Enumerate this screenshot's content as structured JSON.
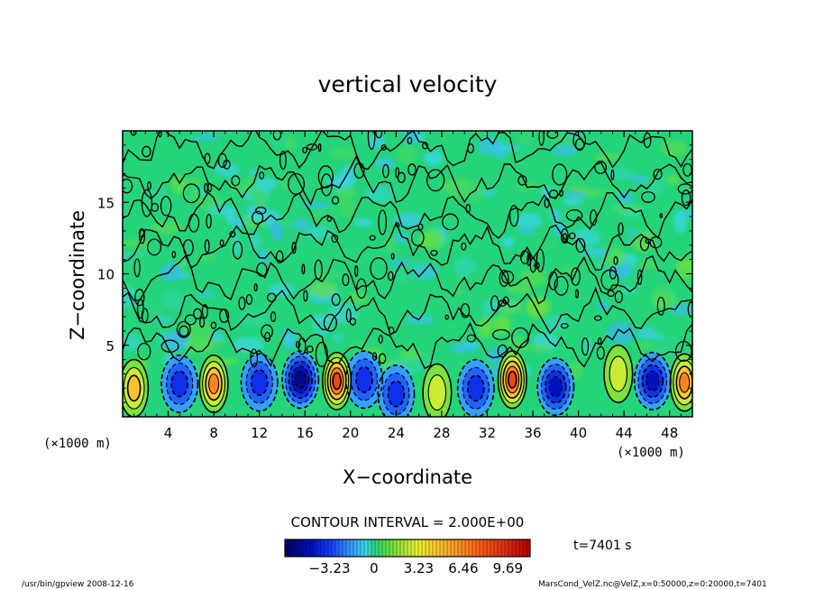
{
  "chart_data": {
    "type": "heatmap",
    "title": "vertical velocity",
    "xlabel": "X−coordinate",
    "ylabel": "Z−coordinate",
    "x_unit_left": "(×1000 m)",
    "x_unit_right": "(×1000 m)",
    "xlim": [
      0,
      50
    ],
    "ylim": [
      0,
      20
    ],
    "x_ticks": [
      "4",
      "8",
      "12",
      "16",
      "20",
      "24",
      "28",
      "32",
      "36",
      "40",
      "44",
      "48"
    ],
    "x_tick_values": [
      4,
      8,
      12,
      16,
      20,
      24,
      28,
      32,
      36,
      40,
      44,
      48
    ],
    "y_ticks": [
      "5",
      "10",
      "15"
    ],
    "y_tick_values": [
      5,
      10,
      15
    ],
    "contour_interval_label": "CONTOUR INTERVAL = 2.000E+00",
    "time_label": "t=7401 s",
    "colorbar_ticks": [
      "−3.23",
      "0",
      "3.23",
      "6.46",
      "9.69"
    ],
    "colorbar_tick_values": [
      -3.23,
      0,
      3.23,
      6.46,
      9.69
    ],
    "colorbar_range": [
      -6.46,
      11.3
    ],
    "updrafts": [
      {
        "x": 1.0,
        "z": 2.0,
        "w": 5.0
      },
      {
        "x": 8.0,
        "z": 2.3,
        "w": 6.5
      },
      {
        "x": 18.8,
        "z": 2.5,
        "w": 9.5
      },
      {
        "x": 27.6,
        "z": 1.7,
        "w": 3.0
      },
      {
        "x": 34.2,
        "z": 2.6,
        "w": 8.5
      },
      {
        "x": 43.5,
        "z": 3.0,
        "w": 2.5
      },
      {
        "x": 49.3,
        "z": 2.4,
        "w": 6.5
      }
    ],
    "downdrafts": [
      {
        "x": 5.0,
        "z": 2.3,
        "w": -3.5
      },
      {
        "x": 12.0,
        "z": 2.4,
        "w": -3.0
      },
      {
        "x": 15.6,
        "z": 2.6,
        "w": -5.5
      },
      {
        "x": 21.2,
        "z": 2.6,
        "w": -3.5
      },
      {
        "x": 24.0,
        "z": 1.6,
        "w": -3.0
      },
      {
        "x": 31.0,
        "z": 2.0,
        "w": -3.0
      },
      {
        "x": 38.0,
        "z": 2.1,
        "w": -4.5
      },
      {
        "x": 46.5,
        "z": 2.5,
        "w": -4.0
      }
    ]
  },
  "footer": {
    "left": "/usr/bin/gpview   2008-12-16",
    "right": "MarsCond_VelZ.nc@VelZ,x=0:50000,z=0:20000,t=7401"
  },
  "colors": {
    "very_negative": "#000080",
    "negative": "#1e3cff",
    "weak_negative": "#40c8ff",
    "zero": "#20d080",
    "positive": "#ffe040",
    "strong_positive": "#ff6000"
  }
}
